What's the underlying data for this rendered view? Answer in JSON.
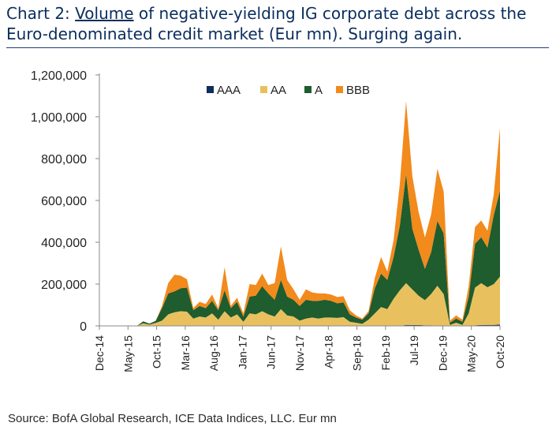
{
  "title": {
    "prefix": "Chart 2: ",
    "underlined": "Volume",
    "rest": " of negative-yielding IG corporate debt across the Euro-denominated credit market (Eur mn). Surging again."
  },
  "source": "Source: BofA Global Research, ICE Data Indices, LLC. Eur mn",
  "chart_data": {
    "type": "area",
    "stacked": true,
    "ylim": [
      0,
      1200000
    ],
    "yticks": [
      0,
      200000,
      400000,
      600000,
      800000,
      1000000,
      1200000
    ],
    "ytick_labels": [
      "0",
      "200,000",
      "400,000",
      "600,000",
      "800,000",
      "1,000,000",
      "1,200,000"
    ],
    "xtick_labels": [
      "Dec-14",
      "May-15",
      "Oct-15",
      "Mar-16",
      "Aug-16",
      "Jan-17",
      "Jun-17",
      "Nov-17",
      "Apr-18",
      "Sep-18",
      "Feb-19",
      "Jul-19",
      "Dec-19",
      "May-20",
      "Oct-20"
    ],
    "x": [
      "Dec-14",
      "Feb-15",
      "Apr-15",
      "Jun-15",
      "Aug-15",
      "Oct-15",
      "Dec-15",
      "Jan-16",
      "Feb-16",
      "Mar-16",
      "Apr-16",
      "May-16",
      "Jun-16",
      "Jul-16",
      "Aug-16",
      "Sep-16",
      "Oct-16",
      "Nov-16",
      "Dec-16",
      "Jan-17",
      "Feb-17",
      "Mar-17",
      "Apr-17",
      "May-17",
      "Jun-17",
      "Jul-17",
      "Aug-17",
      "Sep-17",
      "Oct-17",
      "Nov-17",
      "Dec-17",
      "Jan-18",
      "Feb-18",
      "Mar-18",
      "Apr-18",
      "May-18",
      "Jun-18",
      "Jul-18",
      "Aug-18",
      "Sep-18",
      "Oct-18",
      "Nov-18",
      "Dec-18",
      "Jan-19",
      "Feb-19",
      "Mar-19",
      "Apr-19",
      "May-19",
      "Jun-19",
      "Jul-19",
      "Aug-19",
      "Sep-19",
      "Oct-19",
      "Nov-19",
      "Dec-19",
      "Jan-20",
      "Feb-20",
      "Mar-20",
      "Apr-20",
      "May-20",
      "Jun-20",
      "Jul-20",
      "Aug-20",
      "Sep-20",
      "Oct-20"
    ],
    "series": [
      {
        "name": "AAA",
        "color": "#0d2f5a",
        "values": [
          0,
          0,
          0,
          0,
          0,
          0,
          0,
          0,
          0,
          0,
          0,
          0,
          0,
          0,
          0,
          0,
          0,
          0,
          0,
          0,
          0,
          0,
          0,
          0,
          0,
          0,
          0,
          0,
          0,
          0,
          0,
          0,
          0,
          0,
          0,
          0,
          0,
          0,
          0,
          0,
          0,
          0,
          0,
          0,
          0,
          0,
          0,
          0,
          0,
          5000,
          4000,
          4000,
          3000,
          3000,
          2000,
          2000,
          0,
          0,
          0,
          0,
          3000,
          4000,
          5000,
          5000,
          6000
        ]
      },
      {
        "name": "AA",
        "color": "#e8c15e",
        "values": [
          0,
          0,
          0,
          0,
          0,
          0,
          0,
          12000,
          6000,
          14000,
          25000,
          55000,
          65000,
          70000,
          68000,
          35000,
          45000,
          40000,
          60000,
          30000,
          70000,
          40000,
          55000,
          20000,
          60000,
          55000,
          70000,
          55000,
          45000,
          80000,
          50000,
          45000,
          25000,
          35000,
          40000,
          35000,
          40000,
          40000,
          38000,
          42000,
          20000,
          15000,
          10000,
          30000,
          60000,
          90000,
          80000,
          130000,
          170000,
          200000,
          170000,
          140000,
          120000,
          150000,
          190000,
          150000,
          5000,
          15000,
          5000,
          60000,
          180000,
          200000,
          180000,
          195000,
          230000
        ]
      },
      {
        "name": "A",
        "color": "#1f5c2e",
        "values": [
          0,
          0,
          0,
          0,
          0,
          0,
          0,
          10000,
          5000,
          10000,
          60000,
          100000,
          100000,
          110000,
          115000,
          40000,
          50000,
          45000,
          60000,
          45000,
          100000,
          45000,
          60000,
          25000,
          80000,
          90000,
          120000,
          100000,
          80000,
          140000,
          90000,
          80000,
          70000,
          90000,
          80000,
          85000,
          85000,
          80000,
          70000,
          70000,
          35000,
          25000,
          20000,
          30000,
          120000,
          160000,
          140000,
          200000,
          310000,
          520000,
          290000,
          220000,
          150000,
          200000,
          310000,
          290000,
          10000,
          20000,
          15000,
          80000,
          210000,
          220000,
          190000,
          330000,
          410000
        ]
      },
      {
        "name": "BBB",
        "color": "#f28a1c",
        "values": [
          0,
          0,
          0,
          0,
          0,
          0,
          0,
          0,
          0,
          0,
          10000,
          50000,
          80000,
          60000,
          40000,
          10000,
          20000,
          20000,
          30000,
          10000,
          110000,
          10000,
          20000,
          15000,
          60000,
          50000,
          60000,
          40000,
          80000,
          160000,
          80000,
          50000,
          30000,
          50000,
          40000,
          35000,
          30000,
          30000,
          30000,
          30000,
          20000,
          10000,
          5000,
          10000,
          50000,
          80000,
          40000,
          80000,
          200000,
          350000,
          250000,
          180000,
          150000,
          180000,
          250000,
          200000,
          10000,
          15000,
          10000,
          50000,
          80000,
          80000,
          80000,
          100000,
          300000
        ]
      }
    ],
    "legend_position": "top-center",
    "grid": false
  }
}
